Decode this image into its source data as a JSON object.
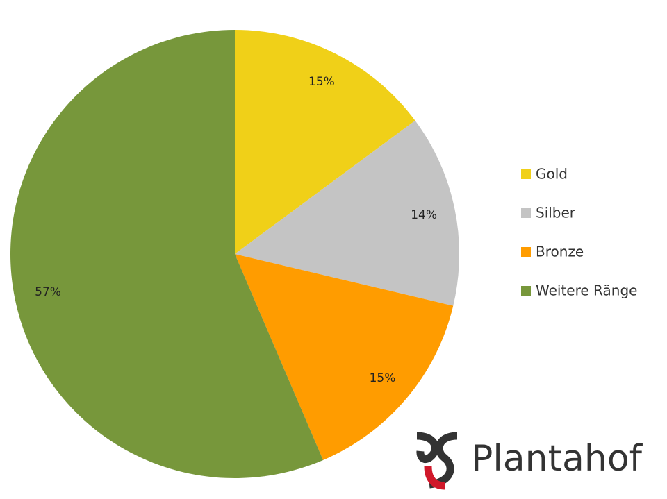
{
  "chart_data": {
    "type": "pie",
    "categories": [
      "Gold",
      "Silber",
      "Bronze",
      "Weitere Ränge"
    ],
    "values": [
      15,
      14,
      15,
      57
    ],
    "value_labels": [
      "15%",
      "14%",
      "15%",
      "57%"
    ],
    "colors": [
      "#f0d018",
      "#c4c4c4",
      "#ff9c00",
      "#77973b"
    ],
    "legend": "right"
  },
  "logo": {
    "text": "Plantahof"
  }
}
